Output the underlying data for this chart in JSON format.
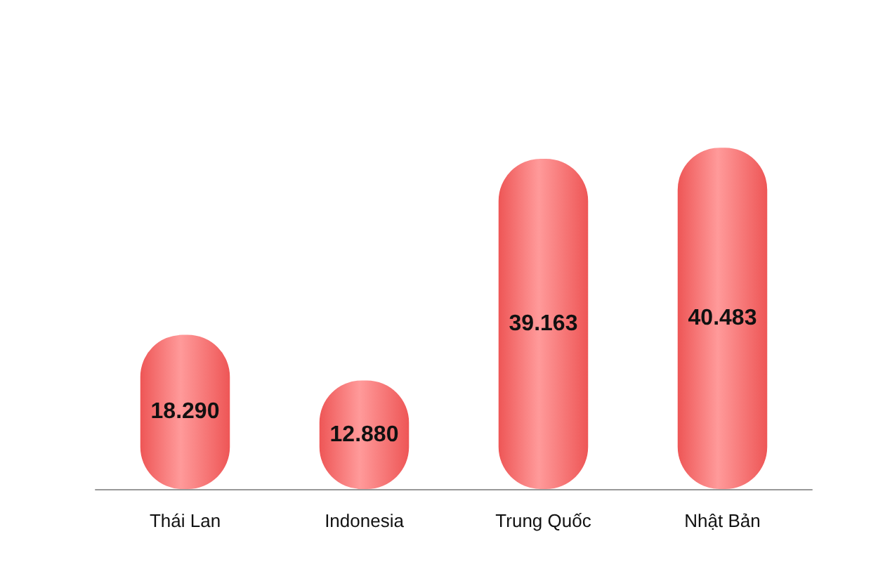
{
  "chart_data": {
    "type": "bar",
    "categories": [
      "Thái Lan",
      "Indonesia",
      "Trung Quốc",
      "Nhật Bản"
    ],
    "values": [
      18290,
      12880,
      39163,
      40483
    ],
    "value_labels": [
      "18.290",
      "12.880",
      "39.163",
      "40.483"
    ],
    "color": "#ee5656"
  }
}
